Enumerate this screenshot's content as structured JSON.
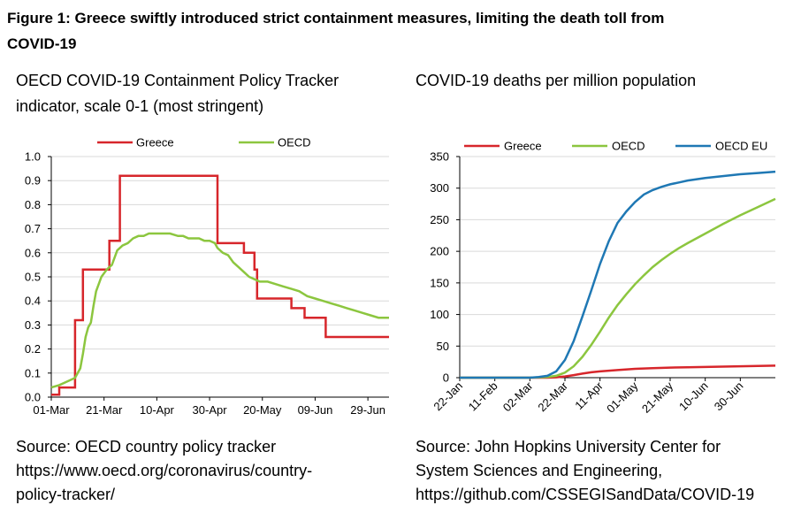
{
  "figure": {
    "title_line1": "Figure 1: Greece swiftly introduced strict containment measures, limiting the death toll from",
    "title_line2": "COVID-19"
  },
  "chart_data": [
    {
      "type": "line",
      "subtitle_line1": "OECD COVID-19 Containment Policy Tracker",
      "subtitle_line2": "indicator, scale 0-1 (most stringent)",
      "source_line1": "Source: OECD country policy tracker",
      "source_line2": "https://www.oecd.org/coronavirus/country-",
      "source_line3": "policy-tracker/",
      "x_day_range": [
        0,
        128
      ],
      "xticks": [
        {
          "label": "01-Mar",
          "day": 0
        },
        {
          "label": "21-Mar",
          "day": 20
        },
        {
          "label": "10-Apr",
          "day": 40
        },
        {
          "label": "30-Apr",
          "day": 60
        },
        {
          "label": "20-May",
          "day": 80
        },
        {
          "label": "09-Jun",
          "day": 100
        },
        {
          "label": "29-Jun",
          "day": 120
        }
      ],
      "ylim": [
        0,
        1.0
      ],
      "yticks": [
        "0.0",
        "0.1",
        "0.2",
        "0.3",
        "0.4",
        "0.5",
        "0.6",
        "0.7",
        "0.8",
        "0.9",
        "1.0"
      ],
      "grid": true,
      "legend": "top",
      "series": [
        {
          "name": "Greece",
          "color": "#d7262b",
          "step": true,
          "x": [
            0,
            3,
            8,
            9,
            12,
            17,
            22,
            23,
            26,
            27,
            28,
            29,
            30,
            34,
            35,
            38,
            41,
            45,
            62,
            63,
            69,
            73,
            74,
            77,
            78,
            79,
            82,
            86,
            91,
            96,
            97,
            100,
            104,
            108,
            128
          ],
          "y": [
            0.01,
            0.04,
            0.04,
            0.32,
            0.53,
            0.53,
            0.65,
            0.65,
            0.92,
            0.92,
            0.92,
            0.92,
            0.92,
            0.92,
            0.92,
            0.92,
            0.92,
            0.92,
            0.92,
            0.64,
            0.64,
            0.6,
            0.6,
            0.53,
            0.41,
            0.41,
            0.41,
            0.41,
            0.37,
            0.33,
            0.33,
            0.33,
            0.25,
            0.25,
            0.25
          ]
        },
        {
          "name": "OECD",
          "color": "#8cc63f",
          "step": false,
          "x": [
            0,
            3,
            5,
            7,
            9,
            11,
            12,
            13,
            14,
            15,
            16,
            17,
            19,
            21,
            23,
            25,
            27,
            29,
            31,
            33,
            35,
            37,
            39,
            41,
            43,
            45,
            48,
            50,
            52,
            54,
            56,
            58,
            60,
            62,
            63,
            65,
            67,
            69,
            71,
            73,
            75,
            77,
            79,
            82,
            85,
            88,
            91,
            94,
            97,
            100,
            103,
            106,
            109,
            112,
            115,
            118,
            121,
            124,
            128
          ],
          "y": [
            0.04,
            0.05,
            0.06,
            0.07,
            0.08,
            0.12,
            0.18,
            0.25,
            0.29,
            0.31,
            0.38,
            0.44,
            0.5,
            0.53,
            0.55,
            0.61,
            0.63,
            0.64,
            0.66,
            0.67,
            0.67,
            0.68,
            0.68,
            0.68,
            0.68,
            0.68,
            0.67,
            0.67,
            0.66,
            0.66,
            0.66,
            0.65,
            0.65,
            0.64,
            0.62,
            0.6,
            0.59,
            0.56,
            0.54,
            0.52,
            0.5,
            0.49,
            0.48,
            0.48,
            0.47,
            0.46,
            0.45,
            0.44,
            0.42,
            0.41,
            0.4,
            0.39,
            0.38,
            0.37,
            0.36,
            0.35,
            0.34,
            0.33,
            0.33
          ]
        }
      ]
    },
    {
      "type": "line",
      "subtitle": "COVID-19 deaths per million population",
      "source_line1": "Source: John Hopkins University Center for",
      "source_line2": "System Sciences and Engineering,",
      "source_line3": "https://github.com/CSSEGISandData/COVID-19",
      "x_day_range": [
        0,
        180
      ],
      "xticks": [
        {
          "label": "22-Jan",
          "day": 0
        },
        {
          "label": "11-Feb",
          "day": 20
        },
        {
          "label": "02-Mar",
          "day": 40
        },
        {
          "label": "22-Mar",
          "day": 60
        },
        {
          "label": "11-Apr",
          "day": 80
        },
        {
          "label": "01-May",
          "day": 100
        },
        {
          "label": "21-May",
          "day": 120
        },
        {
          "label": "10-Jun",
          "day": 140
        },
        {
          "label": "30-Jun",
          "day": 160
        }
      ],
      "ylim": [
        0,
        350
      ],
      "yticks": [
        "0",
        "50",
        "100",
        "150",
        "200",
        "250",
        "300",
        "350"
      ],
      "grid": true,
      "legend": "top",
      "series": [
        {
          "name": "Greece",
          "color": "#d7262b",
          "x": [
            0,
            40,
            50,
            55,
            60,
            65,
            70,
            75,
            80,
            90,
            100,
            110,
            120,
            130,
            140,
            150,
            160,
            170,
            180
          ],
          "y": [
            0,
            0,
            0,
            0.5,
            2,
            4,
            6.5,
            8.5,
            10,
            12,
            14,
            15,
            16,
            16.5,
            17,
            17.5,
            18,
            18.5,
            19
          ]
        },
        {
          "name": "OECD",
          "color": "#8cc63f",
          "x": [
            0,
            40,
            50,
            55,
            60,
            65,
            70,
            75,
            80,
            85,
            90,
            95,
            100,
            105,
            110,
            115,
            120,
            125,
            130,
            140,
            150,
            160,
            170,
            180
          ],
          "y": [
            0,
            0,
            1,
            3,
            8,
            18,
            33,
            52,
            73,
            95,
            115,
            132,
            148,
            162,
            175,
            186,
            196,
            205,
            213,
            228,
            243,
            257,
            270,
            283
          ]
        },
        {
          "name": "OECD EU",
          "color": "#1f78b4",
          "x": [
            0,
            40,
            45,
            50,
            55,
            60,
            65,
            70,
            75,
            80,
            85,
            90,
            95,
            100,
            105,
            110,
            115,
            120,
            125,
            130,
            140,
            150,
            160,
            170,
            180
          ],
          "y": [
            0,
            0,
            1,
            3,
            10,
            28,
            58,
            97,
            138,
            180,
            216,
            245,
            263,
            278,
            290,
            297,
            302,
            306,
            309,
            312,
            316,
            319,
            322,
            324,
            326
          ]
        }
      ]
    }
  ]
}
